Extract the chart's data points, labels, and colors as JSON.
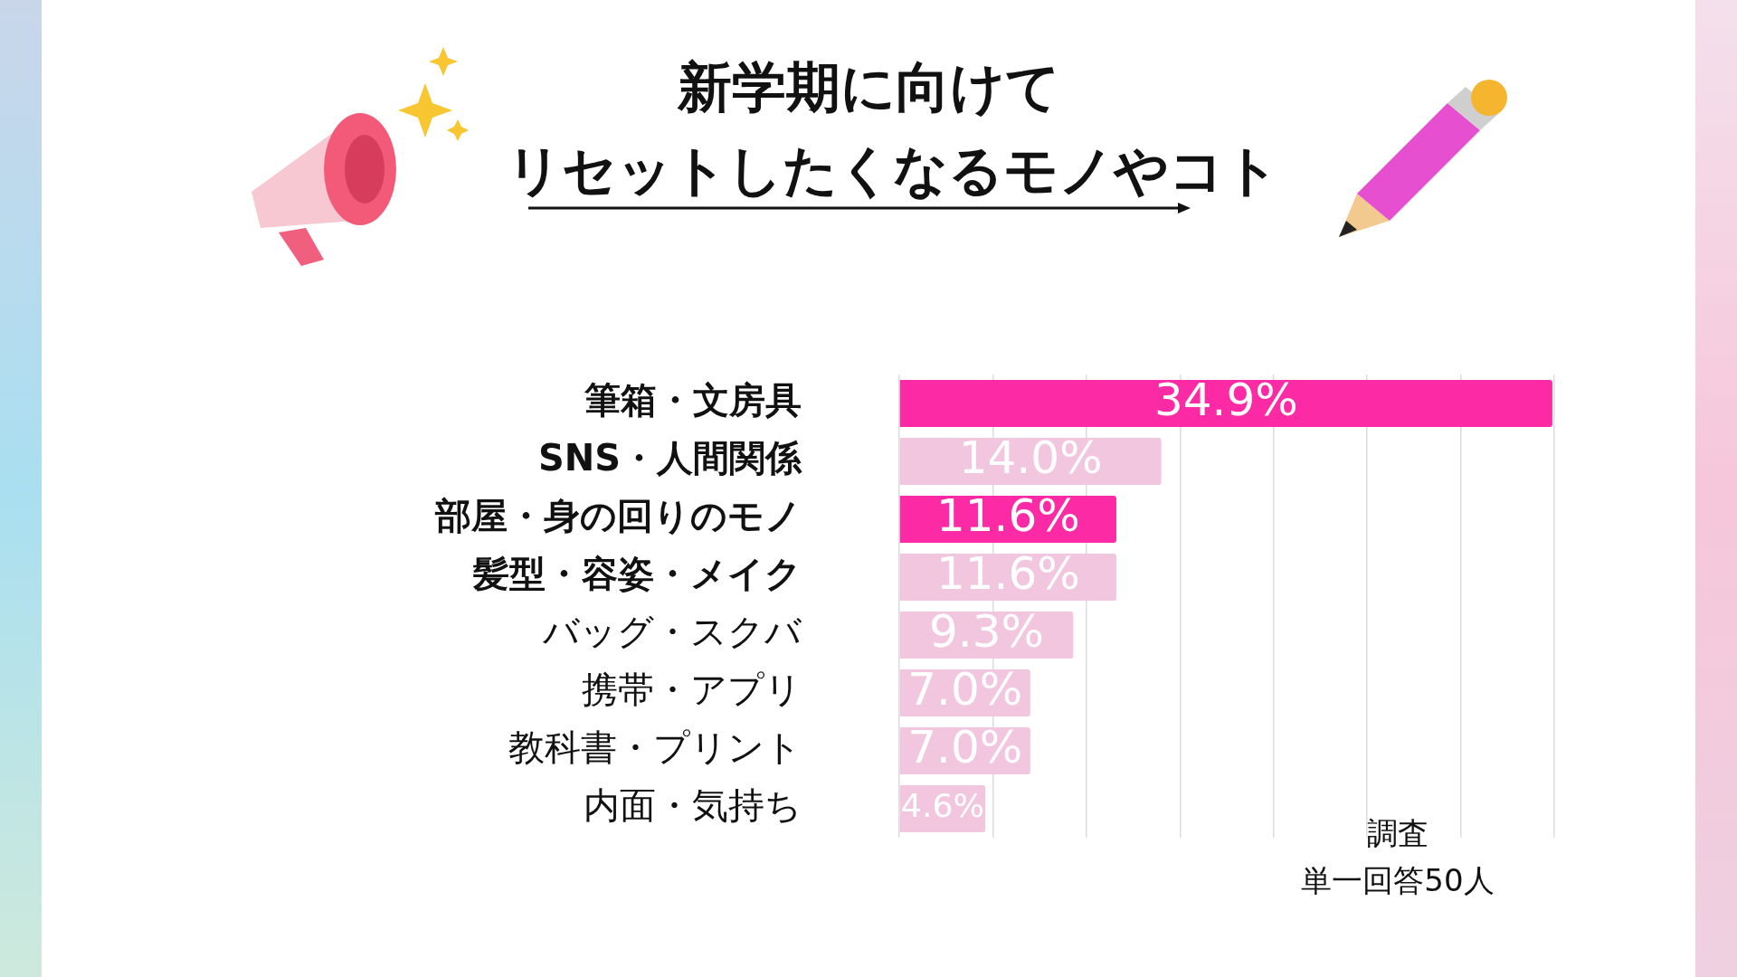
{
  "chart_data": {
    "type": "bar",
    "orientation": "horizontal",
    "title": "新学期に向けて",
    "subtitle": "リセットしたくなるモノやコト",
    "categories": [
      "筆箱・文房具",
      "SNS・人間関係",
      "部屋・身の回りのモノ",
      "髪型・容姿・メイク",
      "バッグ・スクバ",
      "携帯・アプリ",
      "教科書・プリント",
      "内面・気持ち"
    ],
    "values": [
      34.9,
      14.0,
      11.6,
      11.6,
      9.3,
      7.0,
      7.0,
      4.6
    ],
    "value_labels": [
      "34.9%",
      "14.0%",
      "11.6%",
      "11.6%",
      "9.3%",
      "7.0%",
      "7.0%",
      "4.6%"
    ],
    "colors": [
      "#fc2aa5",
      "#f2c6de",
      "#fc2aa5",
      "#f2c6de",
      "#f2c6de",
      "#f2c6de",
      "#f2c6de",
      "#f2c6de"
    ],
    "xlim": [
      0,
      35
    ],
    "xticks": [
      {
        "value": 0,
        "label": null
      },
      {
        "value": 5,
        "label": null
      },
      {
        "value": 10,
        "label": null
      },
      {
        "value": 15,
        "label": null
      },
      {
        "value": 20,
        "label": null
      },
      {
        "value": 25,
        "label": null
      },
      {
        "value": 30,
        "label": null
      },
      {
        "value": 35,
        "label": null
      }
    ],
    "tick_labels": "y",
    "grid": "x",
    "annotations": [
      "調査",
      "単一回答50人"
    ]
  }
}
